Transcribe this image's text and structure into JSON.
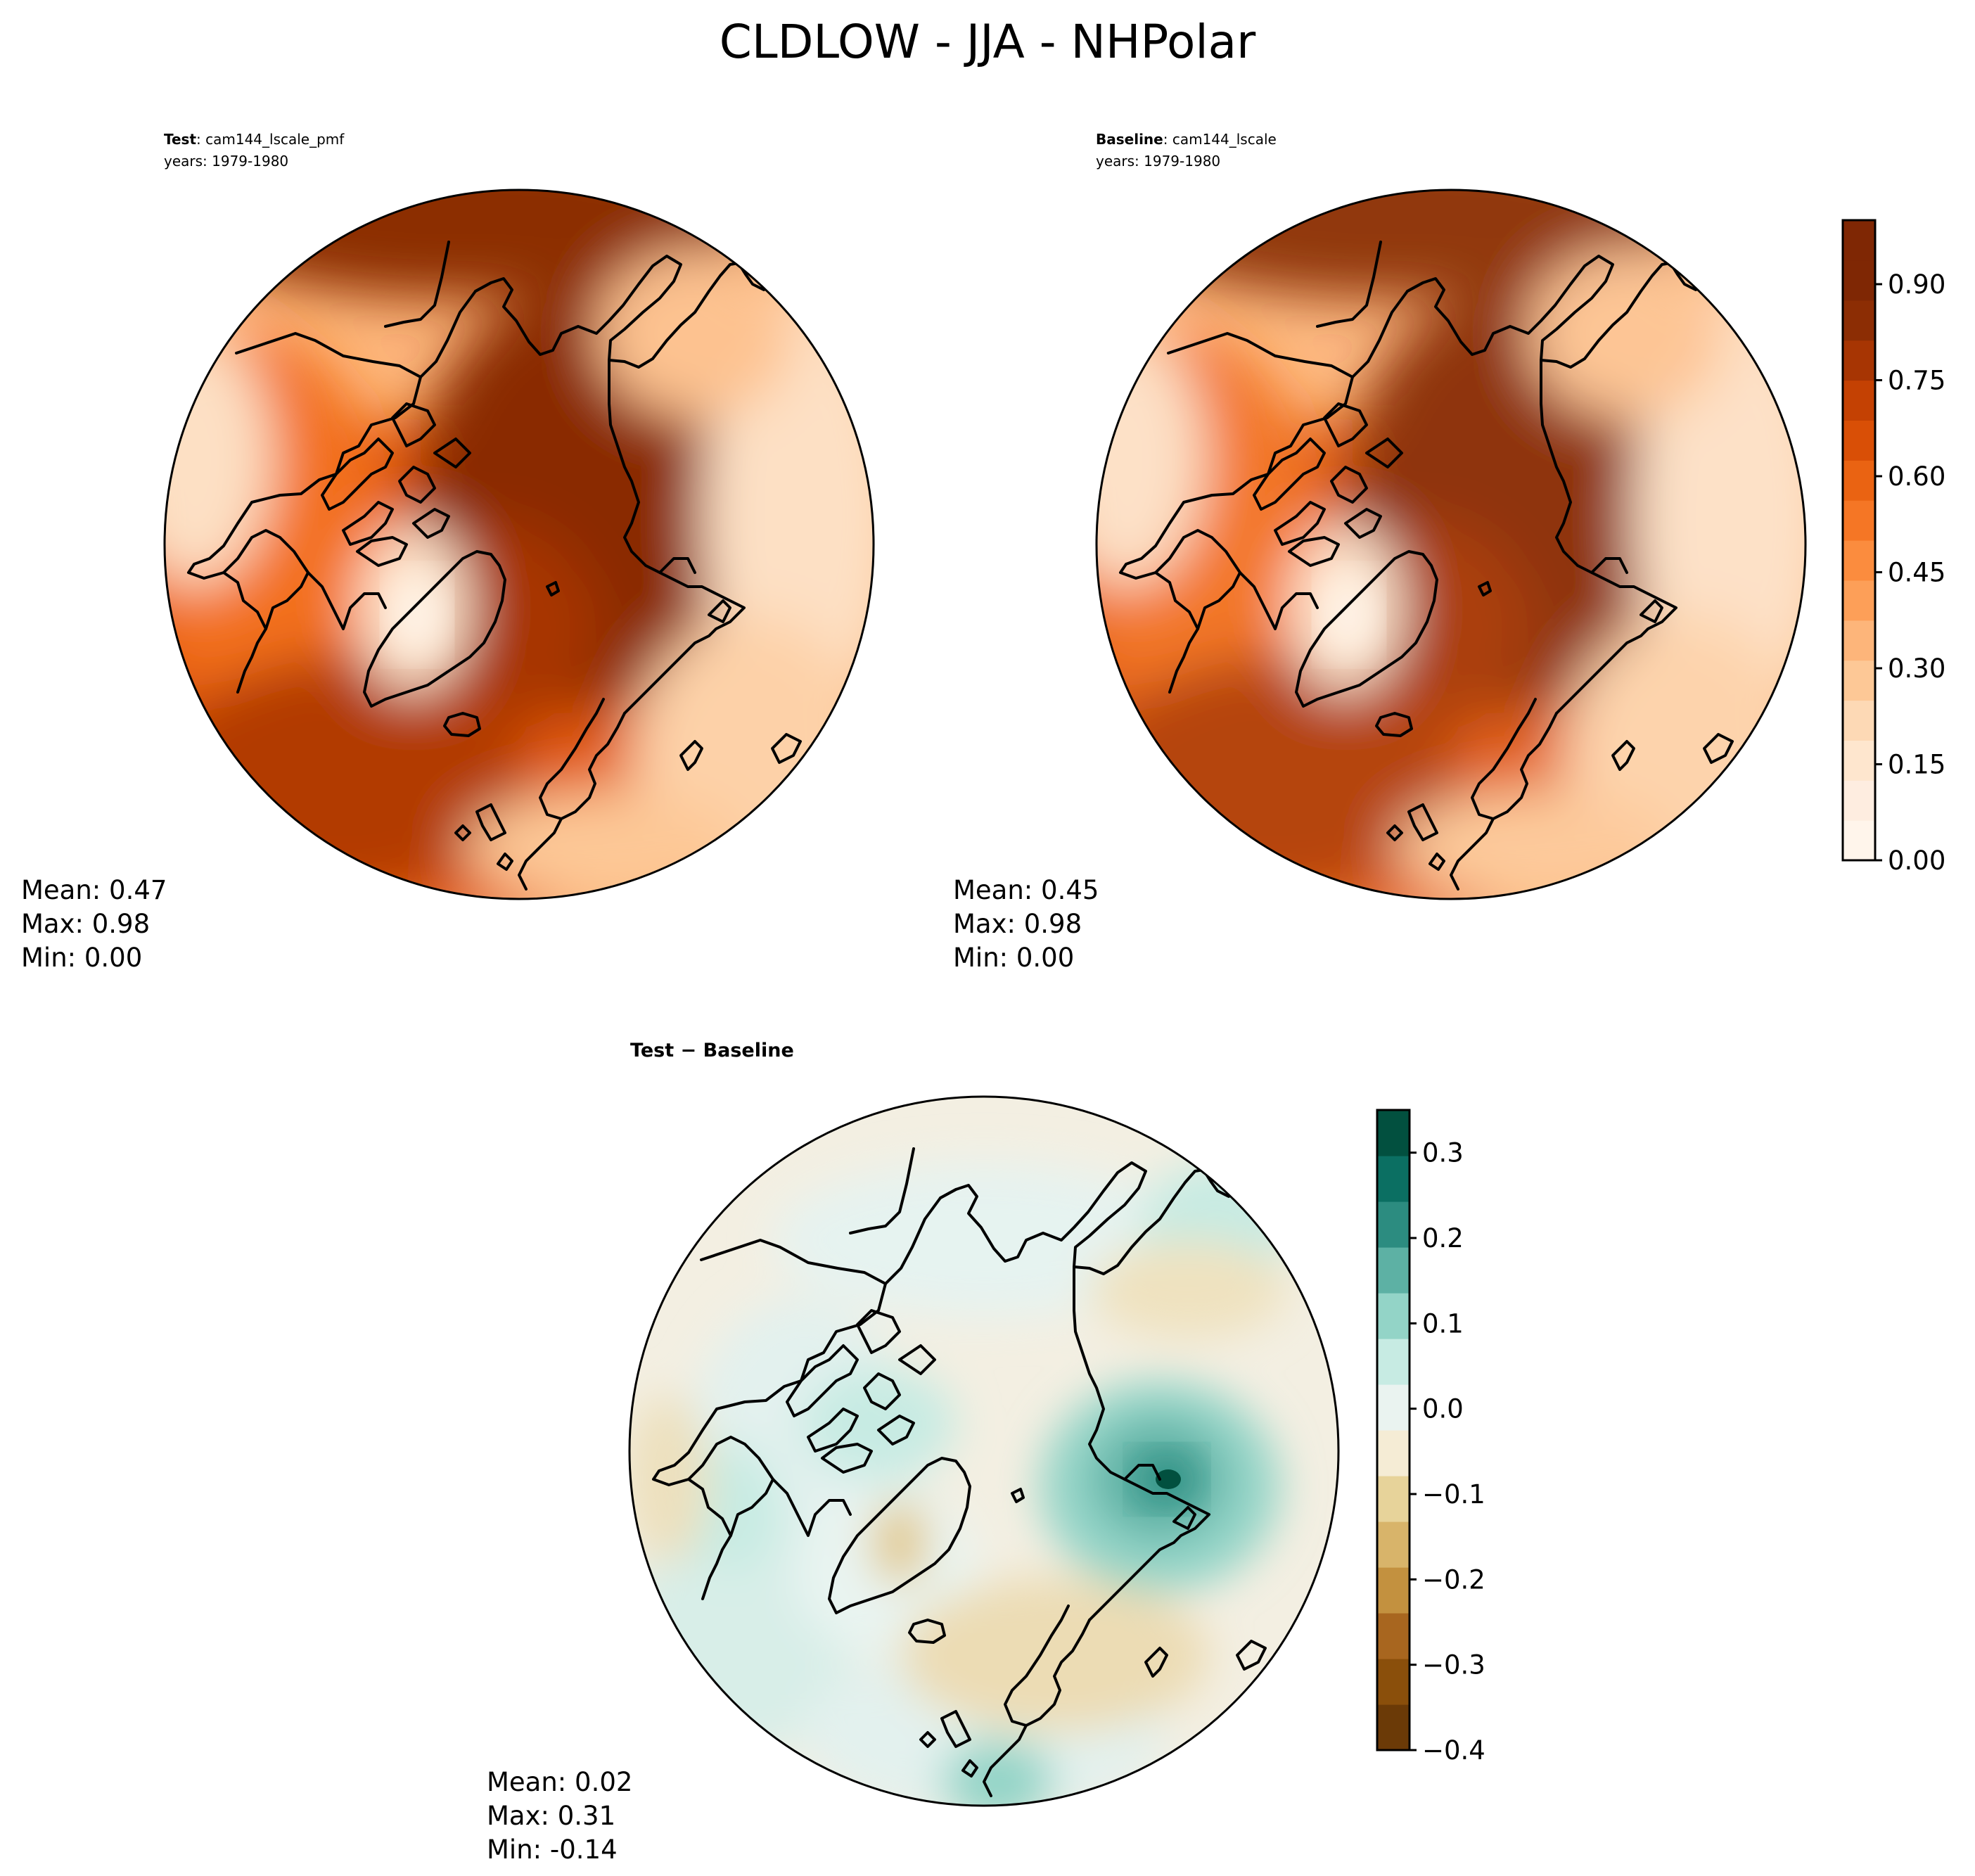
{
  "figure": {
    "title": "CLDLOW - JJA - NHPolar"
  },
  "panels": {
    "test": {
      "label": "Test",
      "case": ": cam144_lscale_pmf",
      "years": "years: 1979-1980",
      "stats": {
        "mean": "Mean:  0.47",
        "max": "Max:  0.98",
        "min": "Min:  0.00"
      }
    },
    "baseline": {
      "label": "Baseline",
      "case": ": cam144_lscale",
      "years": "years: 1979-1980",
      "stats": {
        "mean": "Mean:  0.45",
        "max": "Max:  0.98",
        "min": "Min:  0.00"
      }
    },
    "diff": {
      "title_a": "Test",
      "title_op": " − ",
      "title_b": "Baseline",
      "stats": {
        "mean": "Mean:  0.02",
        "max": "Max:  0.31",
        "min": "Min: -0.14"
      }
    }
  },
  "colorbars": {
    "main": {
      "colormap": "Oranges",
      "range": [
        0.0,
        1.0
      ],
      "levels": 20,
      "colors": [
        "#fff5eb",
        "#feede0",
        "#fee6ce",
        "#fdd9b5",
        "#fdc896",
        "#fdb57a",
        "#fd9f58",
        "#fb8c3e",
        "#f57625",
        "#ea6312",
        "#d94f06",
        "#c44103",
        "#a73503",
        "#8c2d04",
        "#7f2704",
        "#7f2704"
      ],
      "ticks": [
        "0.00",
        "0.15",
        "0.30",
        "0.45",
        "0.60",
        "0.75",
        "0.90"
      ]
    },
    "diff": {
      "colormap": "BrBG",
      "range": [
        -0.4,
        0.35
      ],
      "levels": 15,
      "colors": [
        "#6b3a07",
        "#8a4f0b",
        "#a8661f",
        "#c3913f",
        "#d8b46a",
        "#e7d39a",
        "#f5ecd5",
        "#eaf3f0",
        "#c7ebe3",
        "#93d4c7",
        "#5db1a4",
        "#2c8c80",
        "#0b6f62",
        "#02503f"
      ],
      "ticks": [
        "0.3",
        "0.2",
        "0.1",
        "0.0",
        "−0.1",
        "−0.2",
        "−0.3",
        "−0.4"
      ]
    }
  },
  "chart_data": [
    {
      "type": "heatmap",
      "title": "Test : cam144_lscale_pmf",
      "variable": "CLDLOW",
      "season": "JJA",
      "region": "NHPolar",
      "projection": "north-polar-stereographic",
      "mean": 0.47,
      "max": 0.98,
      "min": 0.0,
      "zlim": [
        0.0,
        1.0
      ]
    },
    {
      "type": "heatmap",
      "title": "Baseline : cam144_lscale",
      "variable": "CLDLOW",
      "season": "JJA",
      "region": "NHPolar",
      "projection": "north-polar-stereographic",
      "mean": 0.45,
      "max": 0.98,
      "min": 0.0,
      "zlim": [
        0.0,
        1.0
      ]
    },
    {
      "type": "heatmap",
      "title": "Test − Baseline",
      "projection": "north-polar-stereographic",
      "mean": 0.02,
      "max": 0.31,
      "min": -0.14,
      "zlim": [
        -0.4,
        0.35
      ]
    }
  ]
}
